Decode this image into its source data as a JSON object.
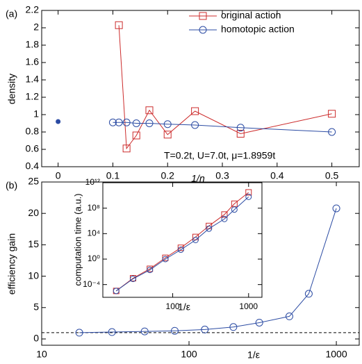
{
  "chart_data": [
    {
      "type": "line",
      "panel": "(a)",
      "xlabel": "1/n",
      "ylabel": "density",
      "annotation": "T=0.2t, U=7.0t, μ=1.8959t",
      "xlim": [
        -0.03,
        0.55
      ],
      "xticks": [
        0,
        0.1,
        0.2,
        0.3,
        0.4,
        0.5
      ],
      "ylim": [
        0.4,
        2.2
      ],
      "yticks": [
        0.4,
        0.6,
        0.8,
        1,
        1.2,
        1.4,
        1.6,
        1.8,
        2,
        2.2
      ],
      "legend": "top-right",
      "series": [
        {
          "name": "original action",
          "color": "#cc2b2b",
          "marker": "square",
          "x": [
            0.111,
            0.125,
            0.1429,
            0.1667,
            0.2,
            0.25,
            0.3333,
            0.5
          ],
          "values": [
            2.03,
            0.61,
            0.76,
            1.05,
            0.77,
            1.04,
            0.78,
            1.01
          ]
        },
        {
          "name": "homotopic action",
          "color": "#2b4ba3",
          "marker": "circle",
          "x": [
            0.1,
            0.111,
            0.125,
            0.1429,
            0.1667,
            0.2,
            0.25,
            0.3333,
            0.5
          ],
          "values": [
            0.91,
            0.91,
            0.91,
            0.9,
            0.9,
            0.89,
            0.88,
            0.85,
            0.8
          ]
        }
      ],
      "points": {
        "color": "#2b4ba3",
        "x": [
          0
        ],
        "values": [
          0.92
        ]
      }
    },
    {
      "type": "line",
      "panel": "(b)",
      "xlabel": "1/ε",
      "ylabel": "efficiency gain",
      "xscale": "log",
      "xlim": [
        10,
        1430
      ],
      "xticks": [
        10,
        100,
        1000
      ],
      "ylim": [
        -1,
        25
      ],
      "yticks": [
        0,
        5,
        10,
        15,
        20,
        25
      ],
      "reference": 1,
      "series": [
        {
          "color": "#2b4ba3",
          "marker": "circle",
          "x": [
            18,
            30,
            50,
            80,
            128,
            200,
            300,
            480,
            650,
            1000
          ],
          "values": [
            1,
            1.1,
            1.2,
            1.3,
            1.5,
            1.9,
            2.6,
            3.6,
            7.2,
            20.8
          ]
        }
      ]
    },
    {
      "type": "line",
      "xlabel": "1/ε",
      "ylabel": "computation time (a.u.)",
      "xscale": "log",
      "yscale": "log",
      "xlim": [
        12,
        1500
      ],
      "xticks": [
        10,
        100,
        1000
      ],
      "ylim": [
        1e-06,
        1000000000000.0
      ],
      "yticks": [
        {
          "value": 0.0001,
          "label": "10⁻⁴"
        },
        {
          "value": 1,
          "label": "10⁰"
        },
        {
          "value": 10000.0,
          "label": "10⁴"
        },
        {
          "value": 100000000.0,
          "label": "10⁸"
        },
        {
          "value": 1000000000000.0,
          "label": "10¹²"
        }
      ],
      "series": [
        {
          "color": "#cc2b2b",
          "marker": "square",
          "x": [
            18,
            30,
            50,
            80,
            128,
            200,
            300,
            480,
            650,
            1000
          ],
          "values": [
            1e-05,
            0.001,
            0.03,
            1.6,
            60,
            3000,
            160000.0,
            10000000.0,
            500000000.0,
            30000000000.0
          ]
        },
        {
          "color": "#2b4ba3",
          "marker": "circle",
          "x": [
            18,
            30,
            50,
            80,
            128,
            200,
            300,
            480,
            650,
            1000
          ],
          "values": [
            1e-05,
            0.0008,
            0.02,
            1,
            30,
            1000,
            60000.0,
            2000000.0,
            60000000.0,
            6000000000.0
          ]
        }
      ]
    }
  ]
}
